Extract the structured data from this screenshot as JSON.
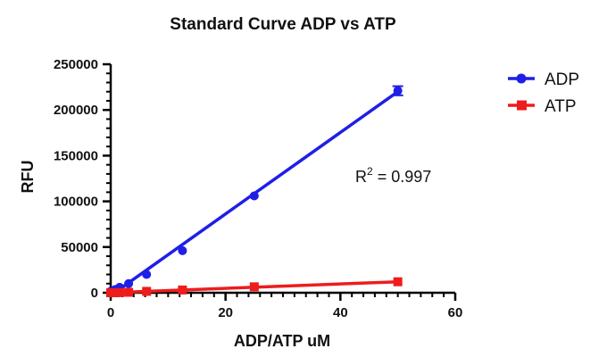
{
  "chart_data": {
    "type": "scatter",
    "title": "Standard Curve ADP vs ATP",
    "xlabel": "ADP/ATP uM",
    "ylabel": "RFU",
    "xlim": [
      0,
      60
    ],
    "ylim": [
      0,
      250000
    ],
    "x_ticks": [
      "0",
      "20",
      "40",
      "60"
    ],
    "y_ticks": [
      "0",
      "50000",
      "100000",
      "150000",
      "200000",
      "250000"
    ],
    "grid": false,
    "legend_position": "top-right",
    "annotation": {
      "base": "R",
      "sup": "2",
      "rest": " = 0.997"
    },
    "series": [
      {
        "name": "ADP",
        "color": "#1f1fe6",
        "marker": "circle",
        "x": [
          0,
          0.78,
          1.56,
          3.125,
          6.25,
          12.5,
          25,
          50
        ],
        "y": [
          1500,
          3500,
          6000,
          10000,
          20000,
          46000,
          106000,
          221000
        ],
        "error": [
          0,
          0,
          0,
          0,
          0,
          0,
          0,
          5000
        ],
        "fit": {
          "x": [
            0,
            50
          ],
          "y": [
            -3000,
            220000
          ]
        }
      },
      {
        "name": "ATP",
        "color": "#ee1c1c",
        "marker": "square",
        "x": [
          0,
          0.78,
          1.56,
          3.125,
          6.25,
          12.5,
          25,
          50
        ],
        "y": [
          0,
          0,
          200,
          500,
          1500,
          3000,
          6500,
          12000
        ],
        "error": [
          0,
          0,
          0,
          0,
          0,
          0,
          0,
          0
        ],
        "fit": {
          "x": [
            0,
            50
          ],
          "y": [
            0,
            12000
          ]
        }
      }
    ]
  }
}
